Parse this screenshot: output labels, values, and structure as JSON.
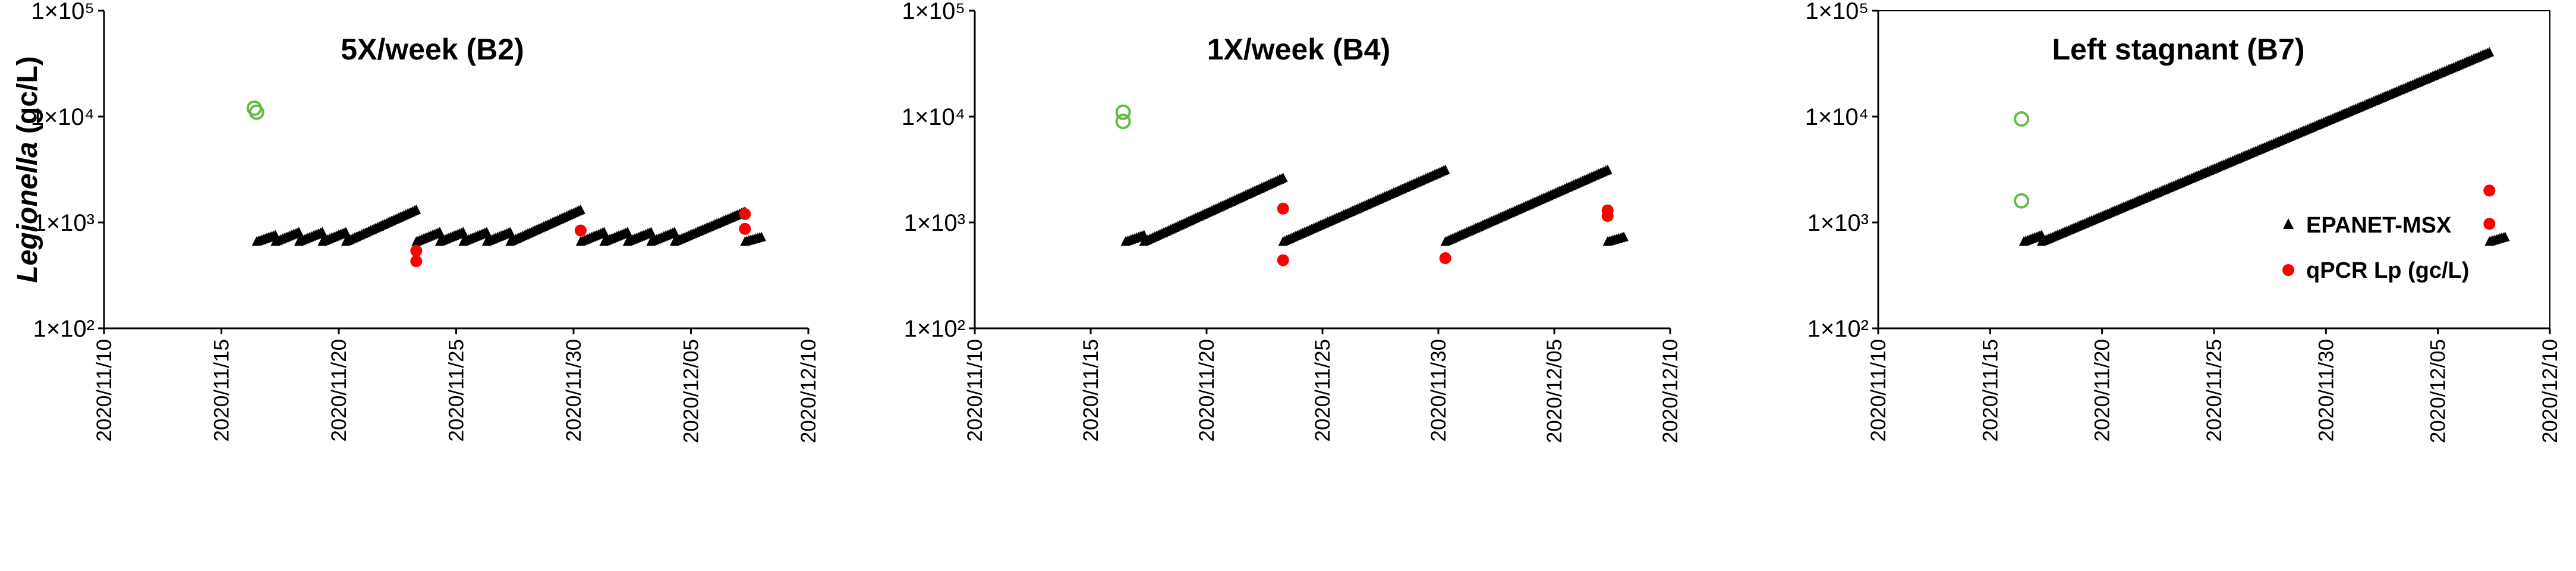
{
  "colors": {
    "model": "#000000",
    "qpcr": "#ff0000",
    "qpcr_open": "#66bb44",
    "axis": "#000000"
  },
  "chart_data": [
    {
      "type": "scatter",
      "title": "5X/week (B2)",
      "ylabel_italic": "Legionella",
      "ylabel_unit": " (gc/L)",
      "yscale": "log",
      "ylim": [
        100,
        100000
      ],
      "yticks": [
        {
          "value": 100,
          "label": "1×10²"
        },
        {
          "value": 1000,
          "label": "1×10³"
        },
        {
          "value": 10000,
          "label": "1×10⁴"
        },
        {
          "value": 100000,
          "label": "1×10⁵"
        }
      ],
      "xlim": [
        "2020-11-10",
        "2020-12-10"
      ],
      "xticks": [
        "2020/11/10",
        "2020/11/15",
        "2020/11/20",
        "2020/11/25",
        "2020/11/30",
        "2020/12/05",
        "2020/12/10"
      ],
      "model_segments": [
        {
          "start": "2020-11-16.5",
          "end": "2020-11-17.3",
          "y0": 650,
          "y1": 750
        },
        {
          "start": "2020-11-17.3",
          "end": "2020-11-18.3",
          "y0": 650,
          "y1": 800
        },
        {
          "start": "2020-11-18.3",
          "end": "2020-11-19.3",
          "y0": 650,
          "y1": 800
        },
        {
          "start": "2020-11-19.3",
          "end": "2020-11-20.3",
          "y0": 650,
          "y1": 800
        },
        {
          "start": "2020-11-20.3",
          "end": "2020-11-23.3",
          "y0": 650,
          "y1": 1300
        },
        {
          "start": "2020-11-23.3",
          "end": "2020-11-24.3",
          "y0": 650,
          "y1": 800
        },
        {
          "start": "2020-11-24.3",
          "end": "2020-11-25.3",
          "y0": 650,
          "y1": 800
        },
        {
          "start": "2020-11-25.3",
          "end": "2020-11-26.3",
          "y0": 650,
          "y1": 800
        },
        {
          "start": "2020-11-26.3",
          "end": "2020-11-27.3",
          "y0": 650,
          "y1": 800
        },
        {
          "start": "2020-11-27.3",
          "end": "2020-11-30.3",
          "y0": 650,
          "y1": 1300
        },
        {
          "start": "2020-11-30.3",
          "end": "2020-12-01.3",
          "y0": 650,
          "y1": 800
        },
        {
          "start": "2020-12-01.3",
          "end": "2020-12-02.3",
          "y0": 650,
          "y1": 800
        },
        {
          "start": "2020-12-02.3",
          "end": "2020-12-03.3",
          "y0": 650,
          "y1": 800
        },
        {
          "start": "2020-12-03.3",
          "end": "2020-12-04.3",
          "y0": 650,
          "y1": 800
        },
        {
          "start": "2020-12-04.3",
          "end": "2020-12-07.3",
          "y0": 650,
          "y1": 1250
        },
        {
          "start": "2020-12-07.3",
          "end": "2020-12-08.0",
          "y0": 650,
          "y1": 720
        }
      ],
      "qpcr": [
        {
          "x": "2020-11-23.3",
          "y": 540
        },
        {
          "x": "2020-11-23.3",
          "y": 430
        },
        {
          "x": "2020-11-30.3",
          "y": 840
        },
        {
          "x": "2020-12-07.3",
          "y": 1200
        },
        {
          "x": "2020-12-07.3",
          "y": 870
        }
      ],
      "qpcr_open": [
        {
          "x": "2020-11-16.4",
          "y": 12000
        },
        {
          "x": "2020-11-16.5",
          "y": 11000
        }
      ]
    },
    {
      "type": "scatter",
      "title": "1X/week (B4)",
      "yscale": "log",
      "ylim": [
        100,
        100000
      ],
      "yticks": [
        {
          "value": 100,
          "label": "1×10²"
        },
        {
          "value": 1000,
          "label": "1×10³"
        },
        {
          "value": 10000,
          "label": "1×10⁴"
        },
        {
          "value": 100000,
          "label": "1×10⁵"
        }
      ],
      "xlim": [
        "2020-11-10",
        "2020-12-10"
      ],
      "xticks": [
        "2020/11/10",
        "2020/11/15",
        "2020/11/20",
        "2020/11/25",
        "2020/11/30",
        "2020/12/05",
        "2020/12/10"
      ],
      "model_segments": [
        {
          "start": "2020-11-16.5",
          "end": "2020-11-17.3",
          "y0": 650,
          "y1": 750
        },
        {
          "start": "2020-11-17.3",
          "end": "2020-11-23.3",
          "y0": 650,
          "y1": 2600
        },
        {
          "start": "2020-11-23.3",
          "end": "2020-11-30.3",
          "y0": 650,
          "y1": 3100
        },
        {
          "start": "2020-11-30.3",
          "end": "2020-12-07.3",
          "y0": 650,
          "y1": 3100
        },
        {
          "start": "2020-12-07.3",
          "end": "2020-12-08.0",
          "y0": 650,
          "y1": 720
        }
      ],
      "qpcr": [
        {
          "x": "2020-11-23.3",
          "y": 1350
        },
        {
          "x": "2020-11-23.3",
          "y": 440
        },
        {
          "x": "2020-11-30.3",
          "y": 460
        },
        {
          "x": "2020-12-07.3",
          "y": 1300
        },
        {
          "x": "2020-12-07.3",
          "y": 1150
        }
      ],
      "qpcr_open": [
        {
          "x": "2020-11-16.4",
          "y": 11000
        },
        {
          "x": "2020-11-16.4",
          "y": 9000
        }
      ]
    },
    {
      "type": "scatter",
      "title": "Left stagnant (B7)",
      "yscale": "log",
      "ylim": [
        100,
        100000
      ],
      "yticks": [
        {
          "value": 100,
          "label": "1×10²"
        },
        {
          "value": 1000,
          "label": "1×10³"
        },
        {
          "value": 10000,
          "label": "1×10⁴"
        },
        {
          "value": 100000,
          "label": "1×10⁵"
        }
      ],
      "xlim": [
        "2020-11-10",
        "2020-12-10"
      ],
      "xticks": [
        "2020/11/10",
        "2020/11/15",
        "2020/11/20",
        "2020/11/25",
        "2020/11/30",
        "2020/12/05",
        "2020/12/10"
      ],
      "legend": [
        {
          "marker": "triangle",
          "label": "EPANET-MSX"
        },
        {
          "marker": "dot",
          "label": "qPCR Lp (gc/L)"
        }
      ],
      "legend_placement": "bottom-right",
      "model_segments": [
        {
          "start": "2020-11-16.5",
          "end": "2020-11-17.3",
          "y0": 650,
          "y1": 750
        },
        {
          "start": "2020-11-17.3",
          "end": "2020-12-07.3",
          "y0": 650,
          "y1": 40000
        },
        {
          "start": "2020-12-07.3",
          "end": "2020-12-08.0",
          "y0": 650,
          "y1": 720
        }
      ],
      "qpcr": [
        {
          "x": "2020-12-07.3",
          "y": 2000
        },
        {
          "x": "2020-12-07.3",
          "y": 970
        }
      ],
      "qpcr_open": [
        {
          "x": "2020-11-16.4",
          "y": 9500
        },
        {
          "x": "2020-11-16.4",
          "y": 1600
        }
      ]
    }
  ]
}
